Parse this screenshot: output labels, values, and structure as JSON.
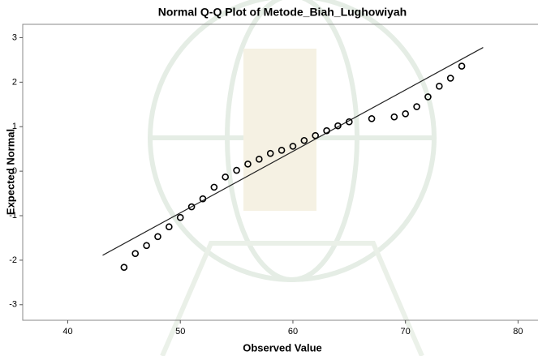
{
  "chart_data": {
    "type": "scatter",
    "title": "Normal Q-Q Plot of Metode_Biah_Lughowiyah",
    "x_label": "Observed Value",
    "y_label": "Expected Normal",
    "x": [
      45,
      46,
      47,
      48,
      49,
      50,
      51,
      52,
      53,
      54,
      55,
      56,
      57,
      58,
      59,
      60,
      61,
      62,
      63,
      64,
      65,
      67,
      69,
      70,
      71,
      72,
      73,
      74,
      75
    ],
    "values": [
      -2.16,
      -1.85,
      -1.67,
      -1.47,
      -1.25,
      -1.04,
      -0.8,
      -0.62,
      -0.36,
      -0.13,
      0.02,
      0.16,
      0.27,
      0.4,
      0.47,
      0.56,
      0.69,
      0.8,
      0.91,
      1.02,
      1.11,
      1.18,
      1.22,
      1.29,
      1.45,
      1.67,
      1.91,
      2.09,
      2.36
    ],
    "color": "#000000",
    "reference_line": {
      "x": [
        43.1,
        76.9
      ],
      "y": [
        -1.89,
        2.78
      ],
      "color": "#222222"
    },
    "xlim": [
      36,
      81.7
    ],
    "ylim": [
      -3.35,
      3.3
    ],
    "xticks": [
      40,
      50,
      60,
      70,
      80
    ],
    "yticks": [
      -3,
      -2,
      -1,
      0,
      1,
      2,
      3
    ]
  }
}
